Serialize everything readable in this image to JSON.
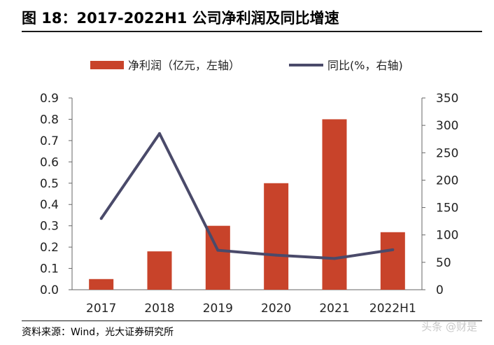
{
  "figure": {
    "title": "图 18：2017-2022H1 公司净利润及同比增速",
    "source": "资料来源：Wind，光大证券研究所",
    "watermark": "头条 @财是"
  },
  "chart_data": {
    "type": "bar",
    "categories": [
      "2017",
      "2018",
      "2019",
      "2020",
      "2021",
      "2022H1"
    ],
    "series": [
      {
        "name": "净利润（亿元，左轴）",
        "type": "bar",
        "axis": "left",
        "color": "#c8432a",
        "values": [
          0.05,
          0.18,
          0.3,
          0.5,
          0.8,
          0.27
        ]
      },
      {
        "name": "同比(%，右轴)",
        "type": "line",
        "axis": "right",
        "color": "#4a4a6a",
        "values": [
          130,
          285,
          72,
          63,
          57,
          73
        ]
      }
    ],
    "left_axis": {
      "ylim": [
        0,
        0.9
      ],
      "ticks": [
        "0.0",
        "0.1",
        "0.2",
        "0.3",
        "0.4",
        "0.5",
        "0.6",
        "0.7",
        "0.8",
        "0.9"
      ]
    },
    "right_axis": {
      "ylim": [
        0,
        350
      ],
      "ticks": [
        "0",
        "50",
        "100",
        "150",
        "200",
        "250",
        "300",
        "350"
      ]
    },
    "legend_position": "top",
    "grid": false
  }
}
